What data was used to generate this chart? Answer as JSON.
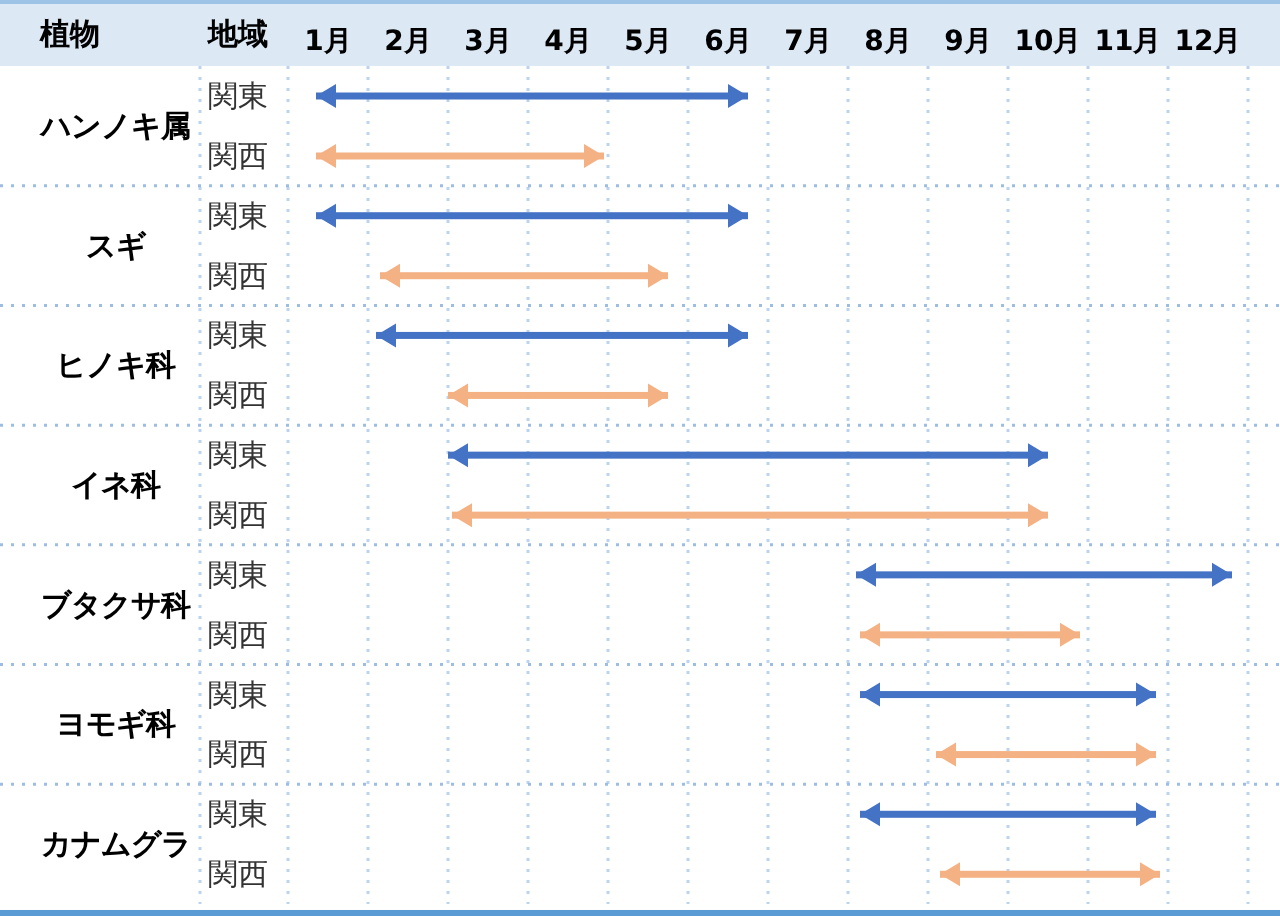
{
  "chart_data": {
    "type": "bar",
    "orientation": "horizontal",
    "ylabel": "植物",
    "legend_title": "地域",
    "categories": [
      "ハンノキ属",
      "スギ",
      "ヒノキ科",
      "イネ科",
      "ブタクサ科",
      "ヨモギ科",
      "カナムグラ"
    ],
    "series": [
      {
        "name": "関東",
        "color": "#4472c4",
        "base": [
          0.35,
          0.35,
          1.1,
          2.0,
          7.1,
          7.15,
          7.15
        ],
        "values": [
          5.4,
          5.4,
          4.65,
          7.5,
          4.7,
          3.7,
          3.7
        ]
      },
      {
        "name": "関西",
        "color": "#f4b183",
        "base": [
          0.35,
          1.15,
          2.0,
          2.05,
          7.15,
          8.1,
          8.15
        ],
        "values": [
          3.6,
          3.6,
          2.75,
          7.45,
          2.75,
          2.75,
          2.75
        ]
      }
    ],
    "xlim": [
      0,
      12
    ],
    "xticks": [
      {
        "value": 0,
        "label": null
      },
      {
        "value": 1,
        "label": null
      },
      {
        "value": 2,
        "label": null
      },
      {
        "value": 3,
        "label": null
      },
      {
        "value": 4,
        "label": null
      },
      {
        "value": 5,
        "label": null
      },
      {
        "value": 6,
        "label": null
      },
      {
        "value": 7,
        "label": null
      },
      {
        "value": 8,
        "label": null
      },
      {
        "value": 9,
        "label": null
      },
      {
        "value": 10,
        "label": null
      },
      {
        "value": 11,
        "label": null
      },
      {
        "value": 12,
        "label": null
      },
      {
        "value": 0.5,
        "label": "1月"
      },
      {
        "value": 1.5,
        "label": "2月"
      },
      {
        "value": 2.5,
        "label": "3月"
      },
      {
        "value": 3.5,
        "label": "4月"
      },
      {
        "value": 4.5,
        "label": "5月"
      },
      {
        "value": 5.5,
        "label": "6月"
      },
      {
        "value": 6.5,
        "label": "7月"
      },
      {
        "value": 7.5,
        "label": "8月"
      },
      {
        "value": 8.5,
        "label": "9月"
      },
      {
        "value": 9.5,
        "label": "10月"
      },
      {
        "value": 10.5,
        "label": "11月"
      },
      {
        "value": 11.5,
        "label": "12月"
      }
    ],
    "grid": true,
    "legend": "left"
  }
}
